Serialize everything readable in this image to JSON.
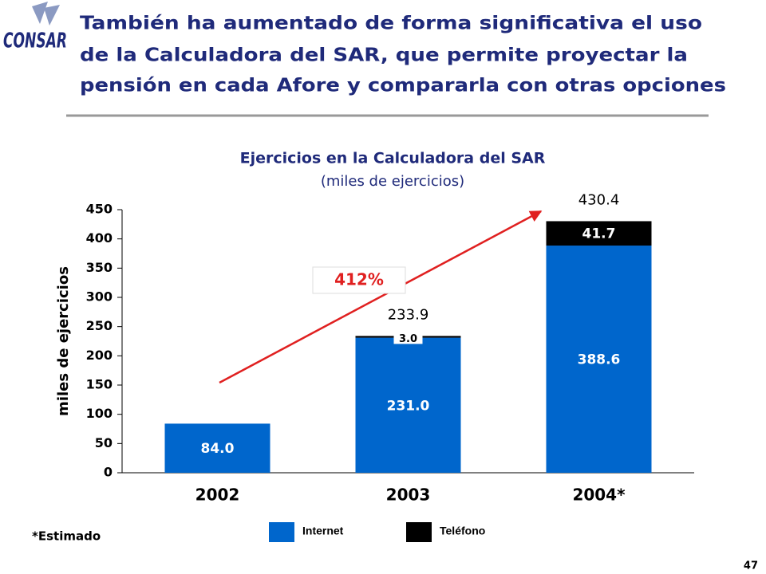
{
  "logo_text": "CONSAR",
  "slide_title": [
    "También ha aumentado de forma significativa el uso",
    "de la Calculadora del SAR, que permite proyectar la",
    "pensión en cada Afore y compararla con otras opciones"
  ],
  "footnote": "*Estimado",
  "page_number": "47",
  "chart_data": {
    "type": "stacked_bar",
    "title": "Ejercicios en la Calculadora del SAR",
    "subtitle": "(miles de ejercicios)",
    "ylabel": "miles de ejercicios",
    "annotation": "412%",
    "categories": [
      "2002",
      "2003",
      "2004*"
    ],
    "series": [
      {
        "name": "Internet",
        "color": "#0066cc",
        "values": [
          84.0,
          231.0,
          388.6
        ],
        "value_labels": [
          "84.0",
          "231.0",
          "388.6"
        ]
      },
      {
        "name": "Teléfono",
        "color": "#000000",
        "values": [
          null,
          3.0,
          41.7
        ],
        "value_labels": [
          null,
          "3.0",
          "41.7"
        ]
      }
    ],
    "totals": [
      null,
      233.9,
      430.4
    ],
    "ylim": [
      0,
      450
    ],
    "yticks": [
      0,
      50,
      100,
      150,
      200,
      250,
      300,
      350,
      400,
      450
    ]
  }
}
